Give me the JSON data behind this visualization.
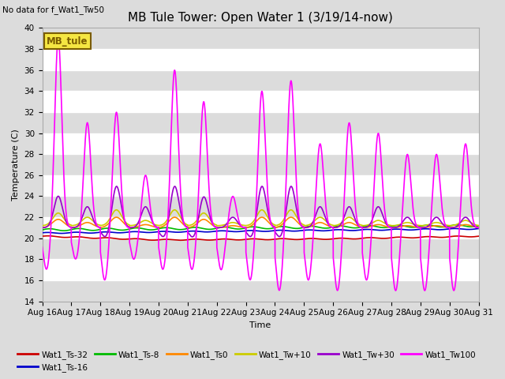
{
  "title": "MB Tule Tower: Open Water 1 (3/19/14-now)",
  "no_data_text": "No data for f_Wat1_Tw50",
  "xlabel": "Time",
  "ylabel": "Temperature (C)",
  "ylim": [
    14,
    40
  ],
  "xlim": [
    0,
    15
  ],
  "background_color": "#dcdcdc",
  "legend_box_label": "MB_tule",
  "legend_box_color": "#f5e642",
  "legend_box_edge_color": "#7a5c00",
  "series": {
    "Wat1_Ts-32": {
      "color": "#cc0000",
      "lw": 1.2
    },
    "Wat1_Ts-16": {
      "color": "#0000cc",
      "lw": 1.2
    },
    "Wat1_Ts-8": {
      "color": "#00bb00",
      "lw": 1.2
    },
    "Wat1_Ts0": {
      "color": "#ff8800",
      "lw": 1.2
    },
    "Wat1_Tw+10": {
      "color": "#cccc00",
      "lw": 1.2
    },
    "Wat1_Tw+30": {
      "color": "#9900cc",
      "lw": 1.2
    },
    "Wat1_Tw100": {
      "color": "#ff00ff",
      "lw": 1.2
    }
  },
  "x_tick_labels": [
    "Aug 16",
    "Aug 17",
    "Aug 18",
    "Aug 19",
    "Aug 20",
    "Aug 21",
    "Aug 22",
    "Aug 23",
    "Aug 24",
    "Aug 25",
    "Aug 26",
    "Aug 27",
    "Aug 28",
    "Aug 29",
    "Aug 30",
    "Aug 31"
  ],
  "yticks": [
    14,
    16,
    18,
    20,
    22,
    24,
    26,
    28,
    30,
    32,
    34,
    36,
    38,
    40
  ],
  "title_fontsize": 11,
  "label_fontsize": 8,
  "tick_fontsize": 7.5
}
